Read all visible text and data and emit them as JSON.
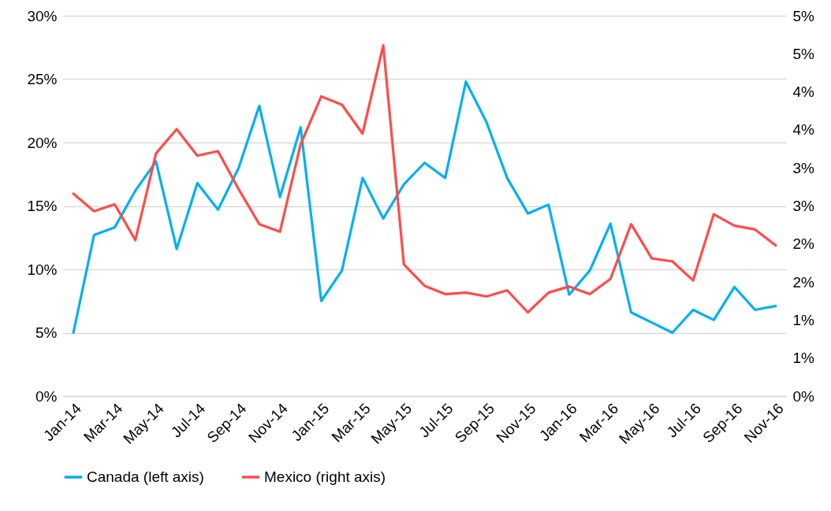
{
  "chart_data": {
    "type": "line",
    "categories": [
      "Jan-14",
      null,
      "Mar-14",
      null,
      "May-14",
      null,
      "Jul-14",
      null,
      "Sep-14",
      null,
      "Nov-14",
      null,
      "Jan-15",
      null,
      "Mar-15",
      null,
      "May-15",
      null,
      "Jul-15",
      null,
      "Sep-15",
      null,
      "Nov-15",
      null,
      "Jan-16",
      null,
      "Mar-16",
      null,
      "May-16",
      null,
      "Jul-16",
      null,
      "Sep-16",
      null,
      "Nov-16"
    ],
    "series": [
      {
        "name": "Canada (left axis)",
        "color": "#00b0f0",
        "values": [
          5.0,
          12.7,
          13.3,
          16.2,
          18.5,
          11.6,
          16.8,
          14.7,
          18.0,
          22.9,
          15.7,
          21.2,
          7.5,
          9.9,
          17.2,
          14.0,
          16.7,
          18.4,
          17.2,
          24.8,
          21.6,
          17.2,
          14.4,
          15.1,
          8.0,
          9.9,
          13.6,
          6.6,
          5.8,
          5.0,
          6.8,
          6.0,
          8.6,
          6.8,
          7.1
        ]
      },
      {
        "name": "Mexico (right axis)",
        "color": "#ff4b4b",
        "axis": "y2",
        "values": [
          2.66,
          2.43,
          2.52,
          2.05,
          3.19,
          3.51,
          3.16,
          3.22,
          2.72,
          2.26,
          2.16,
          3.31,
          3.94,
          3.83,
          3.45,
          4.61,
          1.73,
          1.45,
          1.34,
          1.36,
          1.31,
          1.39,
          1.1,
          1.36,
          1.44,
          1.34,
          1.54,
          2.26,
          1.81,
          1.77,
          1.52,
          2.39,
          2.24,
          2.19,
          1.98
        ]
      }
    ],
    "ylim": [
      0,
      30
    ],
    "yticks": [
      {
        "value": 0,
        "label": "0%"
      },
      {
        "value": 5,
        "label": "5%"
      },
      {
        "value": 10,
        "label": "10%"
      },
      {
        "value": 15,
        "label": "15%"
      },
      {
        "value": 20,
        "label": "20%"
      },
      {
        "value": 25,
        "label": "25%"
      },
      {
        "value": 30,
        "label": "30%"
      }
    ],
    "y2lim": [
      0,
      5
    ],
    "y2ticks": [
      {
        "value": 0,
        "label": "0%"
      },
      {
        "value": 0.5,
        "label": "1%"
      },
      {
        "value": 1,
        "label": "1%"
      },
      {
        "value": 1.5,
        "label": "2%"
      },
      {
        "value": 2,
        "label": "2%"
      },
      {
        "value": 2.5,
        "label": "3%"
      },
      {
        "value": 3,
        "label": "3%"
      },
      {
        "value": 3.5,
        "label": "4%"
      },
      {
        "value": 4,
        "label": "4%"
      },
      {
        "value": 4.5,
        "label": "5%"
      },
      {
        "value": 5,
        "label": "5%"
      }
    ],
    "grid": "y",
    "legend": "bottom",
    "marker": "none",
    "line_style": "solid"
  }
}
